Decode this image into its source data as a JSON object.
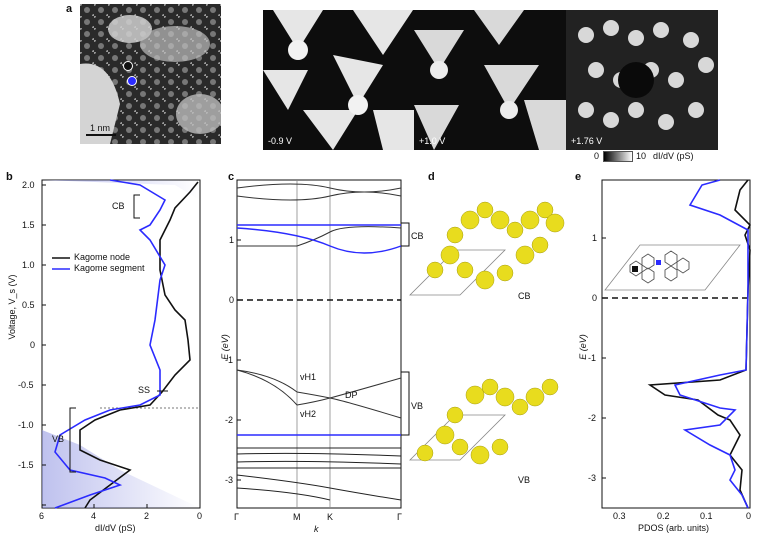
{
  "panel_a": {
    "letter": "a",
    "scale_bar": "1 nm",
    "images": [
      {
        "label": ""
      },
      {
        "label": "-0.9 V"
      },
      {
        "label": "+1.0 V"
      },
      {
        "label": "+1.76 V"
      }
    ],
    "colorbar": {
      "min": "0",
      "max": "10",
      "unit": "dI/dV (pS)"
    }
  },
  "panel_b": {
    "letter": "b",
    "ylabel": "Voltage, V_s (V)",
    "xlabel": "dI/dV (pS)",
    "legend": [
      "Kagome node",
      "Kagome segment"
    ],
    "annotations": {
      "cb": "CB",
      "ss": "SS",
      "vb": "VB"
    },
    "x_ticks": [
      "6",
      "4",
      "2",
      "0"
    ],
    "y_ticks": [
      "2.0",
      "1.5",
      "1.0",
      "0.5",
      "0",
      "-0.5",
      "-1.0",
      "-1.5"
    ]
  },
  "panel_c": {
    "letter": "c",
    "ylabel": "E (eV)",
    "xlabel": "k",
    "k_ticks": [
      "Γ",
      "M",
      "K",
      "Γ"
    ],
    "y_ticks": [
      "1",
      "0",
      "-1",
      "-2",
      "-3"
    ],
    "annotations": {
      "cb": "CB",
      "vb": "VB",
      "vh1": "vH1",
      "vh2": "vH2",
      "dp": "DP"
    }
  },
  "panel_d": {
    "letter": "d",
    "labels": {
      "cb": "CB",
      "vb": "VB"
    }
  },
  "panel_e": {
    "letter": "e",
    "ylabel": "E (eV)",
    "xlabel": "PDOS (arb. units)",
    "x_ticks": [
      "0.3",
      "0.2",
      "0.1",
      "0"
    ],
    "y_ticks": [
      "1",
      "0",
      "-1",
      "-2",
      "-3"
    ]
  },
  "colors": {
    "node": "#111111",
    "segment": "#2b2bff",
    "molecule": "#e8dc1e"
  }
}
